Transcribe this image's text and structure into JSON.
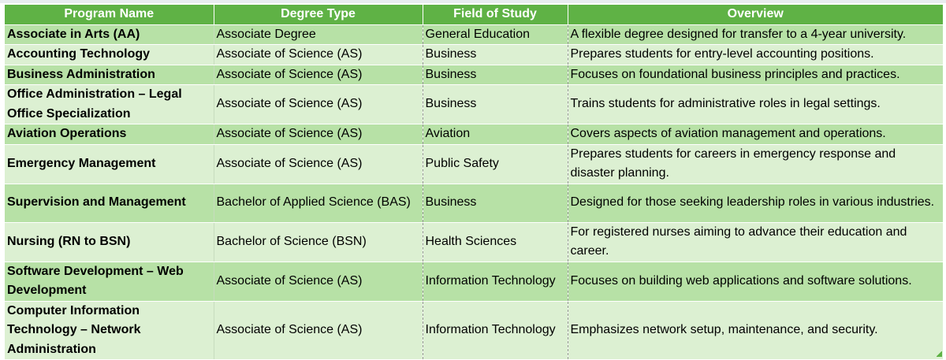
{
  "table": {
    "headers": [
      "Program Name",
      "Degree Type",
      "Field of Study",
      "Overview"
    ],
    "rows": [
      {
        "program": "Associate in Arts (AA)",
        "degree": "Associate Degree",
        "field": "General Education",
        "overview": "A flexible degree designed for transfer to a 4-year university."
      },
      {
        "program": "Accounting Technology",
        "degree": "Associate of Science (AS)",
        "field": "Business",
        "overview": "Prepares students for entry-level accounting positions."
      },
      {
        "program": "Business Administration",
        "degree": "Associate of Science (AS)",
        "field": "Business",
        "overview": "Focuses on foundational business principles and practices."
      },
      {
        "program": "Office Administration – Legal Office Specialization",
        "degree": "Associate of Science (AS)",
        "field": "Business",
        "overview": "Trains students for administrative roles in legal settings."
      },
      {
        "program": "Aviation Operations",
        "degree": "Associate of Science (AS)",
        "field": "Aviation",
        "overview": "Covers aspects of aviation management and operations."
      },
      {
        "program": "Emergency Management",
        "degree": "Associate of Science (AS)",
        "field": "Public Safety",
        "overview": "Prepares students for careers in emergency response and disaster planning."
      },
      {
        "program": "Supervision and Management",
        "degree": "Bachelor of Applied Science (BAS)",
        "field": "Business",
        "overview": "Designed for those seeking leadership roles in various industries."
      },
      {
        "program": "Nursing (RN to BSN)",
        "degree": "Bachelor of Science (BSN)",
        "field": "Health Sciences",
        "overview": "For registered nurses aiming to advance their education and career."
      },
      {
        "program": "Software Development – Web Development",
        "degree": "Associate of Science (AS)",
        "field": "Information Technology",
        "overview": "Focuses on building web applications and software solutions."
      },
      {
        "program": "Computer Information Technology – Network Administration",
        "degree": "Associate of Science (AS)",
        "field": "Information Technology",
        "overview": "Emphasizes network setup, maintenance, and security."
      }
    ]
  },
  "colors": {
    "header_bg": "#5fb245",
    "row_dark": "#b7e1a6",
    "row_light": "#dcf0d2"
  }
}
